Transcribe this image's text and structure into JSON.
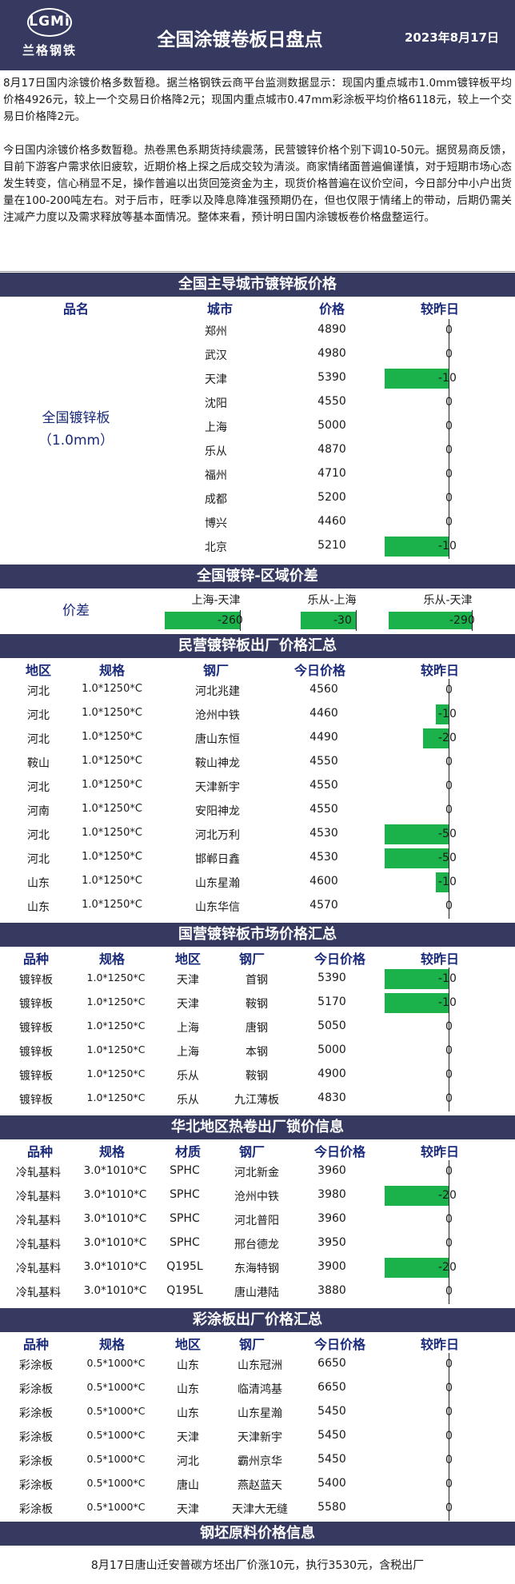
{
  "header": {
    "logo_en": "LGMi",
    "logo_cn": "兰格钢铁",
    "title": "全国涂镀卷板日盘点",
    "date": "2023年8月17日"
  },
  "intro": {
    "p1": "8月17日国内涂镀价格多数暂稳。据兰格钢铁云商平台监测数据显示：现国内重点城市1.0mm镀锌板平均价格4926元，较上一个交易日价格降2元；现国内重点城市0.47mm彩涂板平均价格6118元，较上一个交易日价格降2元。",
    "p2": "今日国内涂镀价格多数暂稳。热卷黑色系期货持续震荡，民营镀锌价格个别下调10-50元。据贸易商反馈，目前下游客户需求依旧疲软，近期价格上探之后成交较为清淡。商家情绪面普遍偏谨慎，对于短期市场心态发生转变，信心稍显不足，操作普遍以出货回笼资金为主，现货价格普遍在议价空间，今日部分中小户出货量在100-200吨左右。对于后市，旺季以及降息降准强预期仍在，但也仅限于情绪上的带动，后期仍需关注减产力度以及需求释放等基本面情况。整体来看，预计明日国内涂镀板卷价格盘整运行。"
  },
  "colors": {
    "header_bg": "#363a61",
    "accent_text": "#1a2a7a",
    "bar_green": "#1bb24b"
  },
  "s1": {
    "title": "全国主导城市镀锌板价格",
    "headers": [
      "品名",
      "城市",
      "价格",
      "较昨日"
    ],
    "product": "全国镀锌板",
    "spec": "（1.0mm）",
    "rows": [
      {
        "city": "郑州",
        "price": "4890",
        "chg": "0",
        "v": 0
      },
      {
        "city": "武汉",
        "price": "4980",
        "chg": "0",
        "v": 0
      },
      {
        "city": "天津",
        "price": "5390",
        "chg": "-10",
        "v": -10
      },
      {
        "city": "沈阳",
        "price": "4550",
        "chg": "0",
        "v": 0
      },
      {
        "city": "上海",
        "price": "5000",
        "chg": "0",
        "v": 0
      },
      {
        "city": "乐从",
        "price": "4870",
        "chg": "0",
        "v": 0
      },
      {
        "city": "福州",
        "price": "4710",
        "chg": "0",
        "v": 0
      },
      {
        "city": "成都",
        "price": "5200",
        "chg": "0",
        "v": 0
      },
      {
        "city": "博兴",
        "price": "4460",
        "chg": "0",
        "v": 0
      },
      {
        "city": "北京",
        "price": "5210",
        "chg": "-10",
        "v": -10
      }
    ]
  },
  "s2": {
    "title": "全国镀锌-区域价差",
    "label": "价差",
    "cols": [
      {
        "name": "上海-天津",
        "val": "-260",
        "v": -260
      },
      {
        "name": "乐从-上海",
        "val": "-30",
        "v": -30
      },
      {
        "name": "乐从-天津",
        "val": "-290",
        "v": -290
      }
    ]
  },
  "s3": {
    "title": "民营镀锌板出厂价格汇总",
    "headers": [
      "地区",
      "规格",
      "钢厂",
      "今日价格",
      "较昨日"
    ],
    "rows": [
      {
        "region": "河北",
        "spec": "1.0*1250*C",
        "mill": "河北兆建",
        "price": "4560",
        "chg": "0",
        "v": 0
      },
      {
        "region": "河北",
        "spec": "1.0*1250*C",
        "mill": "沧州中铁",
        "price": "4460",
        "chg": "-10",
        "v": -10
      },
      {
        "region": "河北",
        "spec": "1.0*1250*C",
        "mill": "唐山东恒",
        "price": "4490",
        "chg": "-20",
        "v": -20
      },
      {
        "region": "鞍山",
        "spec": "1.0*1250*C",
        "mill": "鞍山神龙",
        "price": "4550",
        "chg": "0",
        "v": 0
      },
      {
        "region": "河北",
        "spec": "1.0*1250*C",
        "mill": "天津新宇",
        "price": "4550",
        "chg": "0",
        "v": 0
      },
      {
        "region": "河南",
        "spec": "1.0*1250*C",
        "mill": "安阳神龙",
        "price": "4550",
        "chg": "0",
        "v": 0
      },
      {
        "region": "河北",
        "spec": "1.0*1250*C",
        "mill": "河北万利",
        "price": "4530",
        "chg": "-50",
        "v": -50
      },
      {
        "region": "河北",
        "spec": "1.0*1250*C",
        "mill": "邯郸日鑫",
        "price": "4530",
        "chg": "-50",
        "v": -50
      },
      {
        "region": "山东",
        "spec": "1.0*1250*C",
        "mill": "山东星瀚",
        "price": "4600",
        "chg": "-10",
        "v": -10
      },
      {
        "region": "山东",
        "spec": "1.0*1250*C",
        "mill": "山东华信",
        "price": "4570",
        "chg": "0",
        "v": 0
      }
    ]
  },
  "s4": {
    "title": "国营镀锌板市场价格汇总",
    "headers": [
      "品种",
      "规格",
      "地区",
      "钢厂",
      "今日价格",
      "较昨日"
    ],
    "rows": [
      {
        "kind": "镀锌板",
        "spec": "1.0*1250*C",
        "region": "天津",
        "mill": "首钢",
        "price": "5390",
        "chg": "-10",
        "v": -10
      },
      {
        "kind": "镀锌板",
        "spec": "1.0*1250*C",
        "region": "天津",
        "mill": "鞍钢",
        "price": "5170",
        "chg": "-10",
        "v": -10
      },
      {
        "kind": "镀锌板",
        "spec": "1.0*1250*C",
        "region": "上海",
        "mill": "唐钢",
        "price": "5050",
        "chg": "0",
        "v": 0
      },
      {
        "kind": "镀锌板",
        "spec": "1.0*1250*C",
        "region": "上海",
        "mill": "本钢",
        "price": "5000",
        "chg": "0",
        "v": 0
      },
      {
        "kind": "镀锌板",
        "spec": "1.0*1250*C",
        "region": "乐从",
        "mill": "鞍钢",
        "price": "4900",
        "chg": "0",
        "v": 0
      },
      {
        "kind": "镀锌板",
        "spec": "1.0*1250*C",
        "region": "乐从",
        "mill": "九江薄板",
        "price": "4830",
        "chg": "0",
        "v": 0
      }
    ]
  },
  "s5": {
    "title": "华北地区热卷出厂锁价信息",
    "headers": [
      "品种",
      "规格",
      "材质",
      "钢厂",
      "今日价格",
      "较昨日"
    ],
    "rows": [
      {
        "kind": "冷轧基料",
        "spec": "3.0*1010*C",
        "mat": "SPHC",
        "mill": "河北新金",
        "price": "3960",
        "chg": "0",
        "v": 0
      },
      {
        "kind": "冷轧基料",
        "spec": "3.0*1010*C",
        "mat": "SPHC",
        "mill": "沧州中铁",
        "price": "3980",
        "chg": "-20",
        "v": -20
      },
      {
        "kind": "冷轧基料",
        "spec": "3.0*1010*C",
        "mat": "SPHC",
        "mill": "河北普阳",
        "price": "3960",
        "chg": "0",
        "v": 0
      },
      {
        "kind": "冷轧基料",
        "spec": "3.0*1010*C",
        "mat": "SPHC",
        "mill": "邢台德龙",
        "price": "3950",
        "chg": "0",
        "v": 0
      },
      {
        "kind": "冷轧基料",
        "spec": "3.0*1010*C",
        "mat": "Q195L",
        "mill": "东海特钢",
        "price": "3900",
        "chg": "-20",
        "v": -20
      },
      {
        "kind": "冷轧基料",
        "spec": "3.0*1010*C",
        "mat": "Q195L",
        "mill": "唐山港陆",
        "price": "3880",
        "chg": "0",
        "v": 0
      }
    ]
  },
  "s6": {
    "title": "彩涂板出厂价格汇总",
    "headers": [
      "品种",
      "规格",
      "地区",
      "钢厂",
      "今日价格",
      "较昨日"
    ],
    "rows": [
      {
        "kind": "彩涂板",
        "spec": "0.5*1000*C",
        "region": "山东",
        "mill": "山东冠洲",
        "price": "6650",
        "chg": "0",
        "v": 0
      },
      {
        "kind": "彩涂板",
        "spec": "0.5*1000*C",
        "region": "山东",
        "mill": "临清鸿基",
        "price": "6650",
        "chg": "0",
        "v": 0
      },
      {
        "kind": "彩涂板",
        "spec": "0.5*1000*C",
        "region": "山东",
        "mill": "山东星瀚",
        "price": "5450",
        "chg": "0",
        "v": 0
      },
      {
        "kind": "彩涂板",
        "spec": "0.5*1000*C",
        "region": "天津",
        "mill": "天津新宇",
        "price": "5450",
        "chg": "0",
        "v": 0
      },
      {
        "kind": "彩涂板",
        "spec": "0.5*1000*C",
        "region": "河北",
        "mill": "霸州京华",
        "price": "5450",
        "chg": "0",
        "v": 0
      },
      {
        "kind": "彩涂板",
        "spec": "0.5*1000*C",
        "region": "唐山",
        "mill": "燕赵蓝天",
        "price": "5400",
        "chg": "0",
        "v": 0
      },
      {
        "kind": "彩涂板",
        "spec": "0.5*1000*C",
        "region": "天津",
        "mill": "天津大无缝",
        "price": "5580",
        "chg": "0",
        "v": 0
      }
    ]
  },
  "s7": {
    "title": "钢坯原料价格信息",
    "note": "8月17日唐山迁安普碳方坯出厂价涨10元，执行3530元，含税出厂"
  }
}
